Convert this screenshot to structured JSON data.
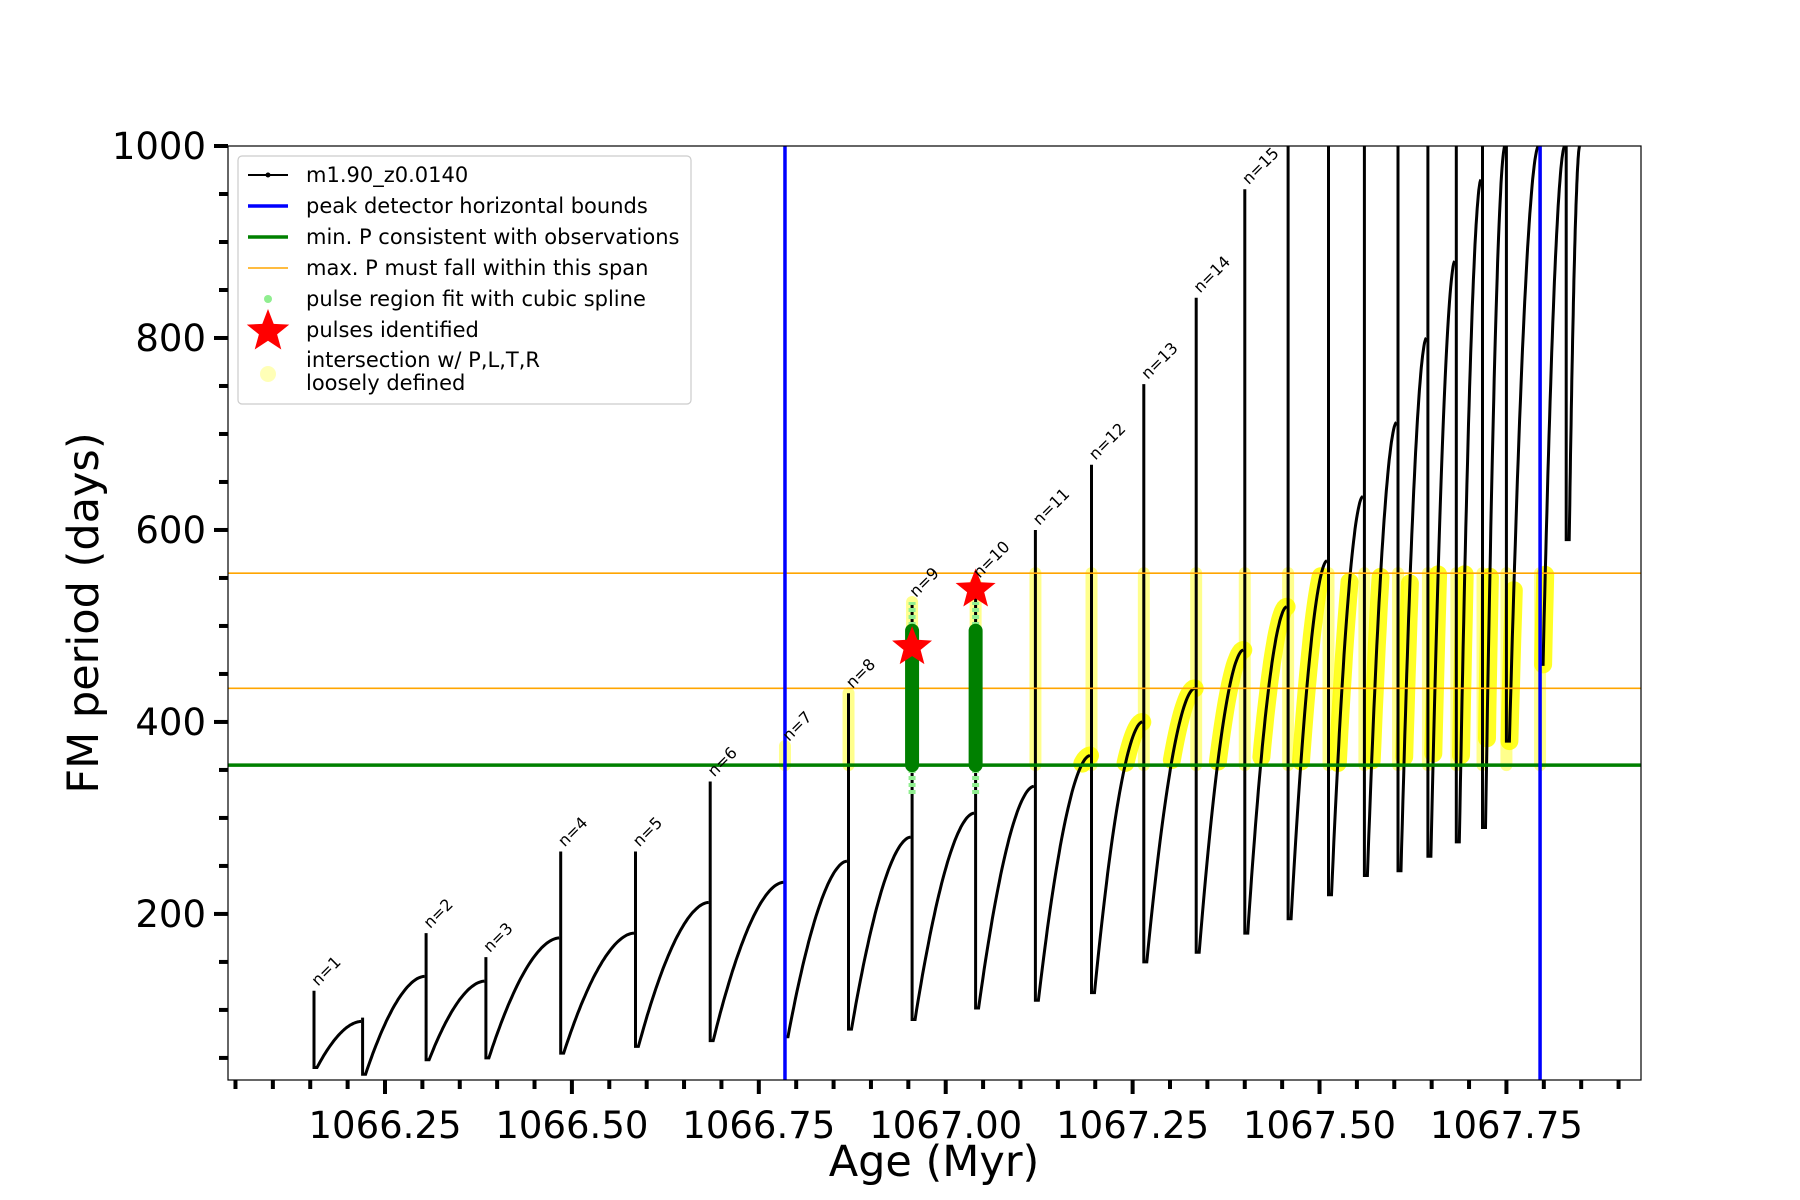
{
  "chart_data": {
    "type": "line",
    "xlabel": "Age (Myr)",
    "ylabel": "FM period (days)",
    "xlim": [
      1066.04,
      1067.93
    ],
    "ylim": [
      27,
      1000
    ],
    "xticks": [
      1066.25,
      1066.5,
      1066.75,
      1067.0,
      1067.25,
      1067.5,
      1067.75
    ],
    "xtick_labels": [
      "1066.25",
      "1066.50",
      "1066.75",
      "1067.00",
      "1067.25",
      "1067.50",
      "1067.75"
    ],
    "yticks": [
      200,
      400,
      600,
      800,
      1000
    ],
    "ytick_labels": [
      "200",
      "400",
      "600",
      "800",
      "1000"
    ],
    "legend_position": "upper-left",
    "legend": [
      {
        "label": "m1.90_z0.0140",
        "marker": "line-dot",
        "color": "#000000"
      },
      {
        "label": "peak detector horizontal bounds",
        "marker": "line",
        "color": "#0000ff"
      },
      {
        "label": "min. P consistent with observations",
        "marker": "line",
        "color": "#008000"
      },
      {
        "label": "max. P must fall within this span",
        "marker": "thin-line",
        "color": "#ffa500"
      },
      {
        "label": "pulse region fit with cubic spline",
        "marker": "dot",
        "color": "#90ee90"
      },
      {
        "label": "pulses identified",
        "marker": "star",
        "color": "#ff0000"
      },
      {
        "label": "intersection w/ P,L,T,R",
        "label2": "loosely defined",
        "marker": "circle",
        "color": "#ffff99"
      }
    ],
    "vlines": [
      1066.785,
      1067.795
    ],
    "hline_min_period": 355,
    "hlines_max_span": [
      435,
      555
    ],
    "series": [
      {
        "name": "m1.90_z0.0140",
        "color": "#000000",
        "pulses": [
          {
            "label": "n=1",
            "age": 1066.155,
            "spike": 120,
            "base": 40,
            "peak": 88
          },
          {
            "label": "",
            "age": 1066.22,
            "spike": 92,
            "base": 33,
            "peak": 135
          },
          {
            "label": "n=2",
            "age": 1066.305,
            "spike": 180,
            "base": 48,
            "peak": 130
          },
          {
            "label": "n=3",
            "age": 1066.385,
            "spike": 155,
            "base": 50,
            "peak": 175
          },
          {
            "label": "n=4",
            "age": 1066.485,
            "spike": 265,
            "base": 55,
            "peak": 180
          },
          {
            "label": "n=5",
            "age": 1066.585,
            "spike": 265,
            "base": 62,
            "peak": 212
          },
          {
            "label": "n=6",
            "age": 1066.685,
            "spike": 338,
            "base": 68,
            "peak": 233
          },
          {
            "label": "n=7",
            "age": 1066.785,
            "spike": 375,
            "base": 72,
            "peak": 255
          },
          {
            "label": "n=8",
            "age": 1066.87,
            "spike": 430,
            "base": 80,
            "peak": 280
          },
          {
            "label": "n=9",
            "age": 1066.955,
            "spike": 525,
            "base": 90,
            "peak": 305
          },
          {
            "label": "n=10",
            "age": 1067.04,
            "spike": 545,
            "base": 102,
            "peak": 333
          },
          {
            "label": "n=11",
            "age": 1067.12,
            "spike": 600,
            "base": 110,
            "peak": 365
          },
          {
            "label": "n=12",
            "age": 1067.195,
            "spike": 668,
            "base": 118,
            "peak": 400
          },
          {
            "label": "n=13",
            "age": 1067.265,
            "spike": 752,
            "base": 150,
            "peak": 435
          },
          {
            "label": "n=14",
            "age": 1067.335,
            "spike": 842,
            "base": 160,
            "peak": 475
          },
          {
            "label": "n=15",
            "age": 1067.4,
            "spike": 955,
            "base": 180,
            "peak": 520
          },
          {
            "label": "",
            "age": 1067.458,
            "spike": 1000,
            "base": 195,
            "peak": 568
          },
          {
            "label": "",
            "age": 1067.512,
            "spike": 1000,
            "base": 220,
            "peak": 635
          },
          {
            "label": "",
            "age": 1067.56,
            "spike": 1000,
            "base": 240,
            "peak": 712
          },
          {
            "label": "",
            "age": 1067.605,
            "spike": 1000,
            "base": 245,
            "peak": 800
          },
          {
            "label": "",
            "age": 1067.645,
            "spike": 1000,
            "base": 260,
            "peak": 880
          },
          {
            "label": "",
            "age": 1067.683,
            "spike": 1000,
            "base": 275,
            "peak": 965
          },
          {
            "label": "",
            "age": 1067.718,
            "spike": 1000,
            "base": 290,
            "peak": 1000
          },
          {
            "label": "",
            "age": 1067.75,
            "spike": 1000,
            "base": 380,
            "peak": 1000
          },
          {
            "label": "",
            "age": 1067.795,
            "spike": 1000,
            "base": 460,
            "peak": 1000
          },
          {
            "label": "",
            "age": 1067.83,
            "spike": 1000,
            "base": 590,
            "peak": 1000
          }
        ]
      },
      {
        "name": "pulses identified",
        "color": "#ff0000",
        "points": [
          {
            "x": 1066.955,
            "y": 478
          },
          {
            "x": 1067.04,
            "y": 538
          }
        ]
      }
    ],
    "spline_regions": [
      {
        "x": 1066.955,
        "y_low": 355,
        "y_high": 495
      },
      {
        "x": 1067.04,
        "y_low": 355,
        "y_high": 495
      }
    ]
  }
}
